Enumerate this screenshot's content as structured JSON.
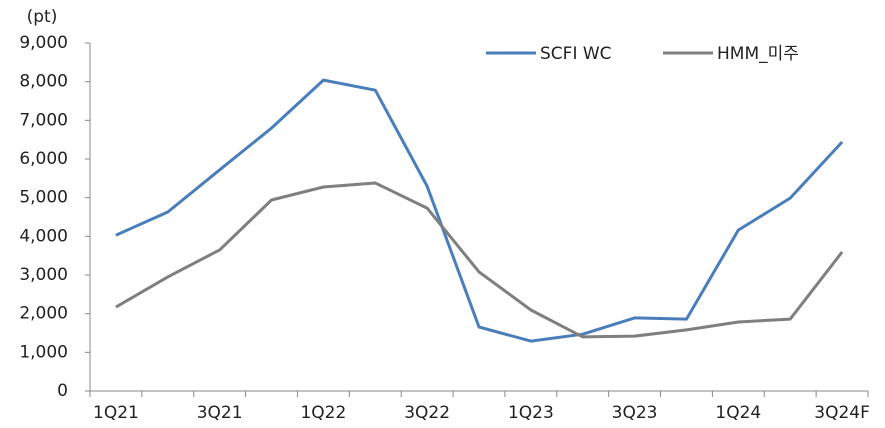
{
  "chart_data": {
    "type": "line",
    "y_unit_label": "(pt)",
    "categories": [
      "1Q21",
      null,
      "3Q21",
      null,
      "1Q22",
      null,
      "3Q22",
      null,
      "1Q23",
      null,
      "3Q23",
      null,
      "1Q24",
      null,
      "3Q24F"
    ],
    "series": [
      {
        "name": "SCFI WC",
        "color": "#4a7ebb",
        "values": [
          4030,
          4630,
          5720,
          6800,
          8040,
          7780,
          5300,
          1655,
          1290,
          1470,
          1890,
          1860,
          4160,
          4990,
          6440
        ]
      },
      {
        "name": "HMM_미주",
        "color": "#7f7f7f",
        "values": [
          2170,
          2950,
          3650,
          4940,
          5275,
          5380,
          4730,
          3080,
          2095,
          1400,
          1420,
          1580,
          1785,
          1860,
          3595
        ]
      }
    ],
    "ylim": [
      0,
      9000
    ],
    "yticks": [
      0,
      {
        "value": 1000,
        "label": "1,000"
      },
      {
        "value": 2000,
        "label": "2,000"
      },
      {
        "value": 3000,
        "label": "3,000"
      },
      {
        "value": 4000,
        "label": "4,000"
      },
      {
        "value": 5000,
        "label": "5,000"
      },
      {
        "value": 6000,
        "label": "6,000"
      },
      {
        "value": 7000,
        "label": "7,000"
      },
      {
        "value": 8000,
        "label": "8,000"
      },
      {
        "value": 9000,
        "label": "9,000"
      }
    ],
    "grid": false,
    "legend": "upper right"
  }
}
